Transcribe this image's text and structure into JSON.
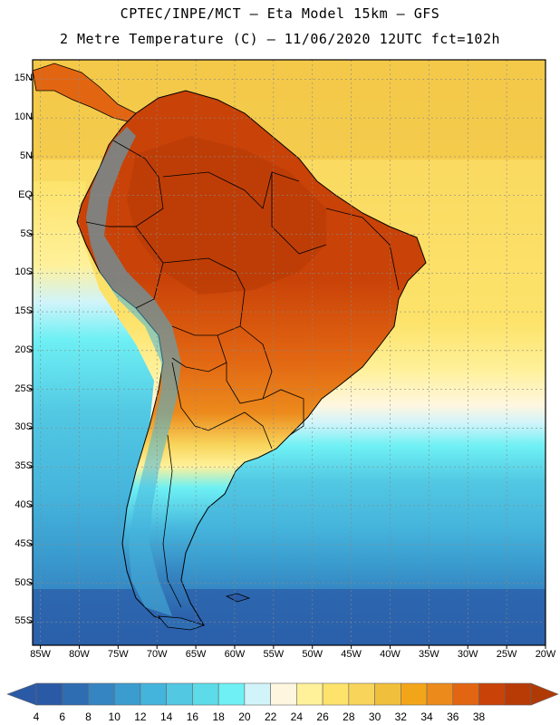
{
  "title": {
    "line1": "CPTEC/INPE/MCT –  Eta Model 15km – GFS",
    "line2": "2 Metre Temperature (C) – 11/06/2020 12UTC fct=102h"
  },
  "map": {
    "lat_labels": [
      "15N",
      "10N",
      "5N",
      "EQ",
      "5S",
      "10S",
      "15S",
      "20S",
      "25S",
      "30S",
      "35S",
      "40S",
      "45S",
      "50S",
      "55S"
    ],
    "lat_values": [
      15,
      10,
      5,
      0,
      -5,
      -10,
      -15,
      -20,
      -25,
      -30,
      -35,
      -40,
      -45,
      -50,
      -55
    ],
    "lon_labels": [
      "85W",
      "80W",
      "75W",
      "70W",
      "65W",
      "60W",
      "55W",
      "50W",
      "45W",
      "40W",
      "35W",
      "30W",
      "25W",
      "20W"
    ],
    "lon_values": [
      -85,
      -80,
      -75,
      -70,
      -65,
      -60,
      -55,
      -50,
      -45,
      -40,
      -35,
      -30,
      -25,
      -20
    ],
    "lat_range": [
      -58,
      17.5
    ],
    "lon_range": [
      -86,
      -20
    ]
  },
  "colorbar": {
    "labels": [
      "4",
      "6",
      "8",
      "10",
      "12",
      "14",
      "16",
      "18",
      "20",
      "22",
      "24",
      "26",
      "28",
      "30",
      "32",
      "34",
      "36",
      "38"
    ],
    "colors": [
      "#2a5aa6",
      "#2f6db3",
      "#3585c2",
      "#3a9ccf",
      "#45b4dc",
      "#52c8e3",
      "#5ddbe9",
      "#6ef0f4",
      "#d1f4fa",
      "#fff6e0",
      "#fff19a",
      "#fde36b",
      "#f8d45a",
      "#f0c03c",
      "#f3a51a",
      "#ec8a1c",
      "#e26612",
      "#c94208",
      "#b83a05"
    ],
    "left_arrow_color": "#2a5aa6",
    "right_arrow_color": "#b03a05"
  }
}
